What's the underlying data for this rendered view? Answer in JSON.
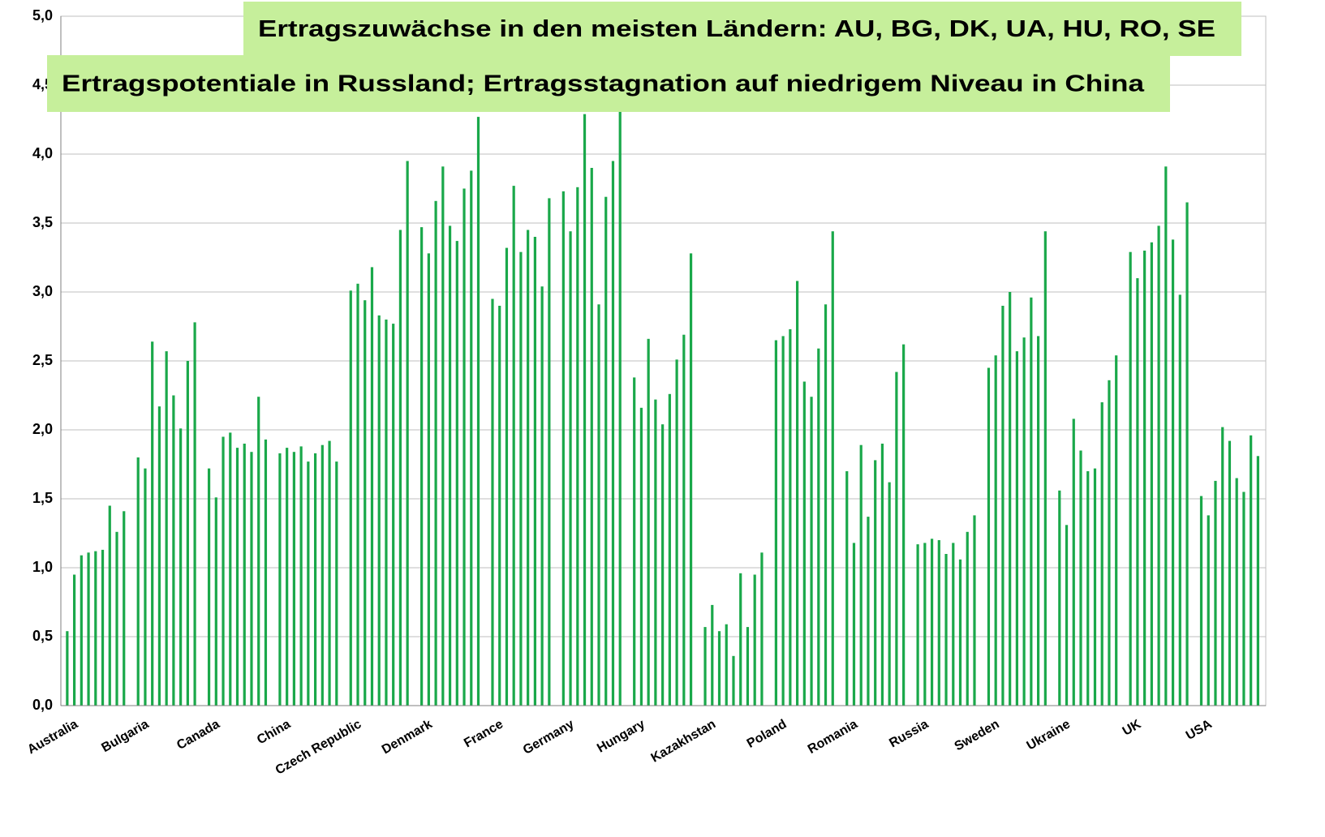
{
  "chart_data": {
    "type": "bar",
    "annotations": [
      "Ertragszuwächse in den meisten Ländern: AU, BG, DK, UA, HU, RO, SE",
      "Ertragspotentiale in Russland; Ertragsstagnation auf niedrigem Niveau in China"
    ],
    "color": "#1aa84a",
    "annotation_color": "#c6ef9b",
    "grid": true,
    "ylim": [
      0,
      5
    ],
    "yticks": [
      {
        "value": 0,
        "label": "0,0"
      },
      {
        "value": 0.5,
        "label": "0,5"
      },
      {
        "value": 1,
        "label": "1,0"
      },
      {
        "value": 1.5,
        "label": "1,5"
      },
      {
        "value": 2,
        "label": "2,0"
      },
      {
        "value": 2.5,
        "label": "2,5"
      },
      {
        "value": 3,
        "label": "3,0"
      },
      {
        "value": 3.5,
        "label": "3,5"
      },
      {
        "value": 4,
        "label": "4,0"
      },
      {
        "value": 4.5,
        "label": "4,5"
      },
      {
        "value": 5,
        "label": "5,0"
      }
    ],
    "categories": [
      "Australia",
      null,
      null,
      null,
      null,
      null,
      null,
      null,
      null,
      null,
      "Bulgaria",
      null,
      null,
      null,
      null,
      null,
      null,
      null,
      null,
      null,
      "Canada",
      null,
      null,
      null,
      null,
      null,
      null,
      null,
      null,
      null,
      "China",
      null,
      null,
      null,
      null,
      null,
      null,
      null,
      null,
      null,
      "Czech Republic",
      null,
      null,
      null,
      null,
      null,
      null,
      null,
      null,
      null,
      "Denmark",
      null,
      null,
      null,
      null,
      null,
      null,
      null,
      null,
      null,
      "France",
      null,
      null,
      null,
      null,
      null,
      null,
      null,
      null,
      null,
      "Germany",
      null,
      null,
      null,
      null,
      null,
      null,
      null,
      null,
      null,
      "Hungary",
      null,
      null,
      null,
      null,
      null,
      null,
      null,
      null,
      null,
      "Kazakhstan",
      null,
      null,
      null,
      null,
      null,
      null,
      null,
      null,
      null,
      "Poland",
      null,
      null,
      null,
      null,
      null,
      null,
      null,
      null,
      null,
      "Romania",
      null,
      null,
      null,
      null,
      null,
      null,
      null,
      null,
      null,
      "Russia",
      null,
      null,
      null,
      null,
      null,
      null,
      null,
      null,
      null,
      "Sweden",
      null,
      null,
      null,
      null,
      null,
      null,
      null,
      null,
      null,
      "Ukraine",
      null,
      null,
      null,
      null,
      null,
      null,
      null,
      null,
      null,
      "UK",
      null,
      null,
      null,
      null,
      null,
      null,
      null,
      null,
      null,
      "USA",
      null,
      null,
      null,
      null,
      null,
      null,
      null,
      null,
      null
    ],
    "values": [
      0.54,
      0.95,
      1.09,
      1.11,
      1.12,
      1.13,
      1.45,
      1.26,
      1.41,
      null,
      1.8,
      1.72,
      2.64,
      2.17,
      2.57,
      2.25,
      2.01,
      2.5,
      2.78,
      null,
      1.72,
      1.51,
      1.95,
      1.98,
      1.87,
      1.9,
      1.84,
      2.24,
      1.93,
      null,
      1.83,
      1.87,
      1.84,
      1.88,
      1.77,
      1.83,
      1.89,
      1.92,
      1.77,
      null,
      3.01,
      3.06,
      2.94,
      3.18,
      2.83,
      2.8,
      2.77,
      3.45,
      3.95,
      null,
      3.47,
      3.28,
      3.66,
      3.91,
      3.48,
      3.37,
      3.75,
      3.88,
      4.27,
      null,
      2.95,
      2.9,
      3.32,
      3.77,
      3.29,
      3.45,
      3.4,
      3.04,
      3.68,
      null,
      3.73,
      3.44,
      3.76,
      4.29,
      3.9,
      2.91,
      3.69,
      3.95,
      4.35,
      null,
      2.38,
      2.16,
      2.66,
      2.22,
      2.04,
      2.26,
      2.51,
      2.69,
      3.28,
      null,
      0.57,
      0.73,
      0.54,
      0.59,
      0.36,
      0.96,
      0.57,
      0.95,
      1.11,
      null,
      2.65,
      2.68,
      2.73,
      3.08,
      2.35,
      2.24,
      2.59,
      2.91,
      3.44,
      null,
      1.7,
      1.18,
      1.89,
      1.37,
      1.78,
      1.9,
      1.62,
      2.42,
      2.62,
      null,
      1.17,
      1.18,
      1.21,
      1.2,
      1.1,
      1.18,
      1.06,
      1.26,
      1.38,
      null,
      2.45,
      2.54,
      2.9,
      3.0,
      2.57,
      2.67,
      2.96,
      2.68,
      3.44,
      null,
      1.56,
      1.31,
      2.08,
      1.85,
      1.7,
      1.72,
      2.2,
      2.36,
      2.54,
      null,
      3.29,
      3.1,
      3.3,
      3.36,
      3.48,
      3.91,
      3.38,
      2.98,
      3.65,
      null,
      1.52,
      1.38,
      1.63,
      2.02,
      1.92,
      1.65,
      1.55,
      1.96,
      1.81,
      null
    ]
  }
}
